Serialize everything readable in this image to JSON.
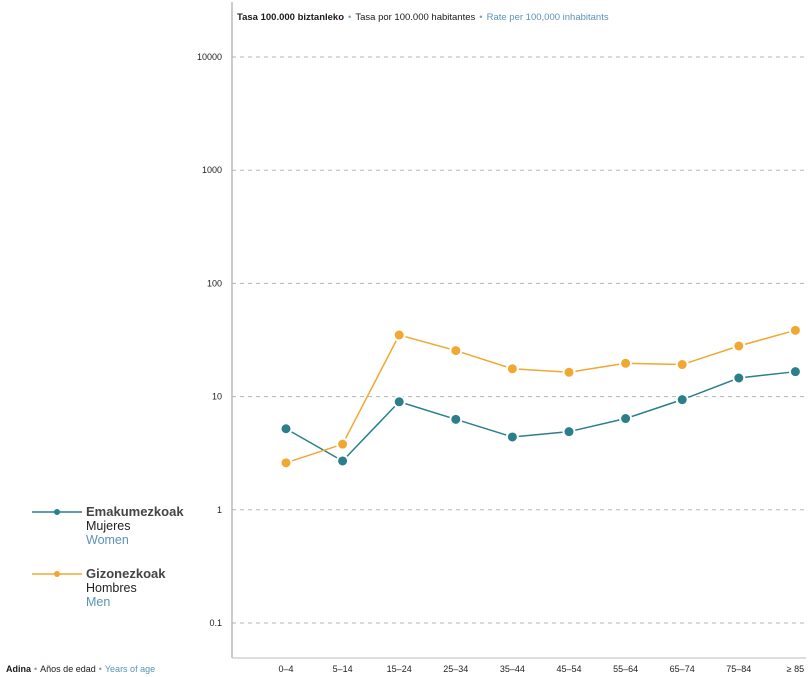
{
  "header": {
    "eu": "Tasa 100.000 biztanleko",
    "es": "Tasa por 100.000 habitantes",
    "en": "Rate per 100,000 inhabitants",
    "sep": "•"
  },
  "footer": {
    "eu": "Adina",
    "es": "Años de edad",
    "en": "Years of age",
    "sep": "•"
  },
  "legend": [
    {
      "eu": "Emakumezkoak",
      "es": "Mujeres",
      "en": "Women",
      "color": "#2a7f8a"
    },
    {
      "eu": "Gizonezkoak",
      "es": "Hombres",
      "en": "Men",
      "color": "#f0a830"
    }
  ],
  "chart_data": {
    "type": "line",
    "y_scale": "log",
    "ylim": [
      0.1,
      10000
    ],
    "y_ticks": [
      "0.1",
      "1",
      "10",
      "100",
      "1000",
      "10000"
    ],
    "categories": [
      "0–4",
      "5–14",
      "15–24",
      "25–34",
      "35–44",
      "45–54",
      "55–64",
      "65–74",
      "75–84",
      "≥ 85"
    ],
    "grid": true,
    "series": [
      {
        "name": "Emakumezkoak",
        "color": "#2a7f8a",
        "values": [
          5.2,
          2.7,
          9.0,
          6.3,
          4.4,
          4.9,
          6.4,
          9.4,
          14.6,
          16.6
        ]
      },
      {
        "name": "Gizonezkoak",
        "color": "#f0a830",
        "values": [
          2.6,
          3.8,
          35,
          25.5,
          17.6,
          16.4,
          19.7,
          19.2,
          28,
          38.5
        ]
      }
    ]
  }
}
